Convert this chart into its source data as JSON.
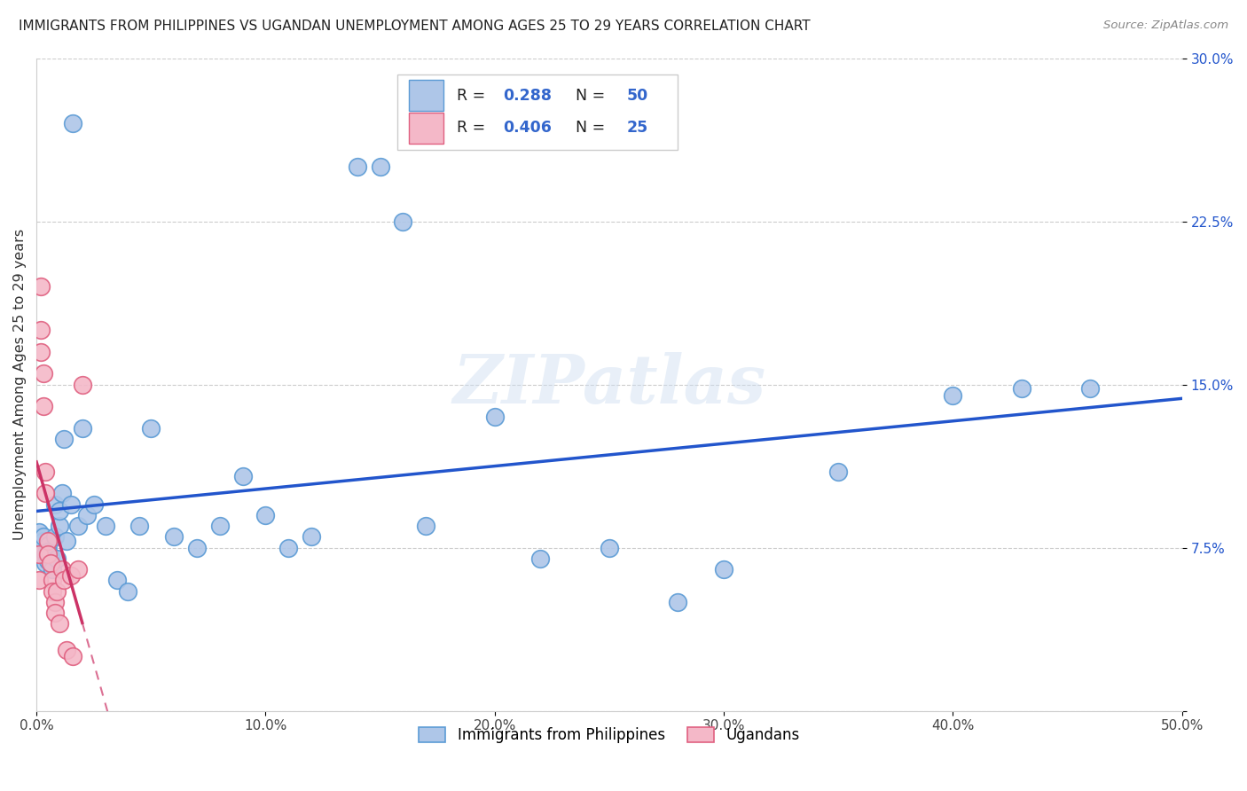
{
  "title": "IMMIGRANTS FROM PHILIPPINES VS UGANDAN UNEMPLOYMENT AMONG AGES 25 TO 29 YEARS CORRELATION CHART",
  "source": "Source: ZipAtlas.com",
  "ylabel": "Unemployment Among Ages 25 to 29 years",
  "xlim": [
    0,
    0.5
  ],
  "ylim": [
    0,
    0.3
  ],
  "xticks": [
    0.0,
    0.1,
    0.2,
    0.3,
    0.4,
    0.5
  ],
  "xticklabels": [
    "0.0%",
    "10.0%",
    "20.0%",
    "30.0%",
    "40.0%",
    "50.0%"
  ],
  "yticks": [
    0.0,
    0.075,
    0.15,
    0.225,
    0.3
  ],
  "yticklabels": [
    "",
    "7.5%",
    "15.0%",
    "22.5%",
    "30.0%"
  ],
  "legend_r1": "R = ",
  "legend_v1": "0.288",
  "legend_n1": "  N = ",
  "legend_nv1": "50",
  "legend_r2": "R = ",
  "legend_v2": "0.406",
  "legend_n2": "  N = ",
  "legend_nv2": "25",
  "legend_bottom_label1": "Immigrants from Philippines",
  "legend_bottom_label2": "Ugandans",
  "blue_color": "#aec6e8",
  "blue_edge_color": "#5b9bd5",
  "pink_color": "#f4b8c8",
  "pink_edge_color": "#e06080",
  "blue_line_color": "#2255cc",
  "pink_line_color": "#cc3366",
  "text_color_blue": "#3366cc",
  "text_color_black": "#222222",
  "watermark": "ZIPatlas",
  "blue_scatter_x": [
    0.001,
    0.002,
    0.003,
    0.003,
    0.004,
    0.004,
    0.005,
    0.005,
    0.005,
    0.006,
    0.007,
    0.008,
    0.008,
    0.009,
    0.01,
    0.01,
    0.011,
    0.012,
    0.013,
    0.015,
    0.016,
    0.018,
    0.02,
    0.022,
    0.025,
    0.03,
    0.035,
    0.04,
    0.045,
    0.05,
    0.06,
    0.07,
    0.08,
    0.09,
    0.1,
    0.11,
    0.12,
    0.14,
    0.15,
    0.16,
    0.17,
    0.2,
    0.22,
    0.25,
    0.28,
    0.3,
    0.35,
    0.4,
    0.43,
    0.46
  ],
  "blue_scatter_y": [
    0.082,
    0.075,
    0.078,
    0.08,
    0.072,
    0.068,
    0.076,
    0.073,
    0.069,
    0.071,
    0.065,
    0.08,
    0.095,
    0.07,
    0.085,
    0.092,
    0.1,
    0.125,
    0.078,
    0.095,
    0.27,
    0.085,
    0.13,
    0.09,
    0.095,
    0.085,
    0.06,
    0.055,
    0.085,
    0.13,
    0.08,
    0.075,
    0.085,
    0.108,
    0.09,
    0.075,
    0.08,
    0.25,
    0.25,
    0.225,
    0.085,
    0.135,
    0.07,
    0.075,
    0.05,
    0.065,
    0.11,
    0.145,
    0.148,
    0.148
  ],
  "pink_scatter_x": [
    0.001,
    0.001,
    0.002,
    0.002,
    0.002,
    0.003,
    0.003,
    0.004,
    0.004,
    0.005,
    0.005,
    0.006,
    0.007,
    0.007,
    0.008,
    0.008,
    0.009,
    0.01,
    0.011,
    0.012,
    0.013,
    0.015,
    0.016,
    0.018,
    0.02
  ],
  "pink_scatter_y": [
    0.072,
    0.06,
    0.195,
    0.175,
    0.165,
    0.155,
    0.14,
    0.11,
    0.1,
    0.078,
    0.072,
    0.068,
    0.06,
    0.055,
    0.05,
    0.045,
    0.055,
    0.04,
    0.065,
    0.06,
    0.028,
    0.062,
    0.025,
    0.065,
    0.15
  ]
}
